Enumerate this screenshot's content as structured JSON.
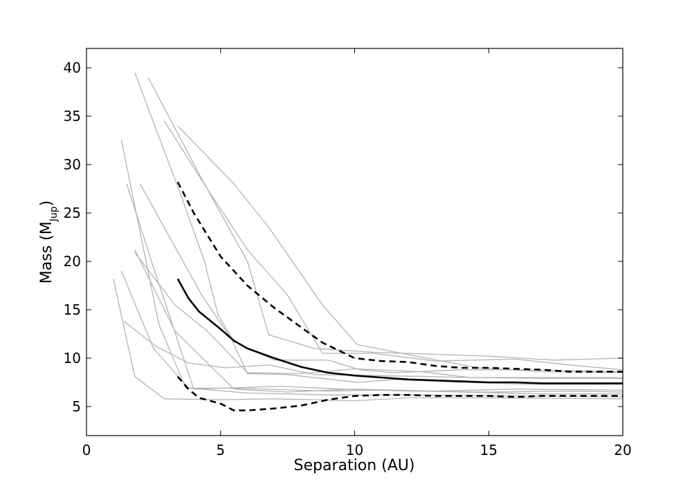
{
  "chart_data": {
    "type": "line",
    "title": "",
    "xlabel": "Separation (AU)",
    "ylabel": "Mass (M",
    "ylabel_subscript": "Jup",
    "ylabel_suffix": ")",
    "xlim": [
      0,
      20
    ],
    "ylim": [
      2,
      42
    ],
    "xticks": [
      0,
      5,
      10,
      15,
      20
    ],
    "yticks": [
      5,
      10,
      15,
      20,
      25,
      30,
      35,
      40
    ],
    "grid": false,
    "legend": "none",
    "colors": {
      "individual": "#b3b3b3",
      "summary": "#000000"
    },
    "individual_series": [
      {
        "points": [
          [
            1.0,
            18.2
          ],
          [
            1.8,
            8.1
          ],
          [
            2.9,
            5.8
          ],
          [
            5,
            5.7
          ],
          [
            7,
            5.8
          ],
          [
            10,
            5.6
          ],
          [
            12,
            5.9
          ],
          [
            15,
            5.9
          ],
          [
            20,
            5.8
          ]
        ]
      },
      {
        "points": [
          [
            1.3,
            19.0
          ],
          [
            2.5,
            11.0
          ],
          [
            3.8,
            6.9
          ],
          [
            6,
            6.4
          ],
          [
            9,
            6.2
          ],
          [
            12,
            6.2
          ],
          [
            16,
            6.1
          ],
          [
            20,
            6.0
          ]
        ]
      },
      {
        "points": [
          [
            1.4,
            13.8
          ],
          [
            2.6,
            11.2
          ],
          [
            3.8,
            9.5
          ],
          [
            5.2,
            9.0
          ],
          [
            6.8,
            9.3
          ],
          [
            8.5,
            8.3
          ],
          [
            10.8,
            8.2
          ],
          [
            14.4,
            8.0
          ],
          [
            17.2,
            7.9
          ],
          [
            20,
            7.9
          ]
        ]
      },
      {
        "points": [
          [
            1.3,
            32.5
          ],
          [
            2.7,
            13.5
          ],
          [
            3.7,
            6.9
          ],
          [
            5.5,
            6.9
          ],
          [
            9,
            6.6
          ],
          [
            11,
            6.7
          ],
          [
            14,
            6.5
          ],
          [
            17,
            6.3
          ],
          [
            20,
            6.3
          ]
        ]
      },
      {
        "points": [
          [
            1.5,
            28.0
          ],
          [
            2.6,
            18.5
          ],
          [
            4.0,
            6.8
          ],
          [
            7.2,
            7.1
          ],
          [
            9.5,
            6.8
          ],
          [
            12,
            6.6
          ],
          [
            15,
            6.5
          ],
          [
            18,
            6.6
          ],
          [
            20,
            6.5
          ]
        ]
      },
      {
        "points": [
          [
            1.8,
            21.2
          ],
          [
            3.3,
            12.8
          ],
          [
            5.5,
            6.8
          ],
          [
            7.5,
            6.5
          ],
          [
            10,
            6.8
          ],
          [
            13,
            6.6
          ],
          [
            16,
            6.8
          ],
          [
            20,
            6.7
          ]
        ]
      },
      {
        "points": [
          [
            1.8,
            20.9
          ],
          [
            3.3,
            15.5
          ],
          [
            4.5,
            12.8
          ],
          [
            6.0,
            8.5
          ],
          [
            8.0,
            8.4
          ],
          [
            10,
            8.9
          ],
          [
            12.5,
            8.6
          ],
          [
            14.3,
            8.0
          ],
          [
            20,
            8.0
          ]
        ]
      },
      {
        "points": [
          [
            2.0,
            28.0
          ],
          [
            4.3,
            16.5
          ],
          [
            5.4,
            12.0
          ],
          [
            6.0,
            8.4
          ],
          [
            7.5,
            8.3
          ],
          [
            10.1,
            7.5
          ],
          [
            11.5,
            7.8
          ],
          [
            14,
            7.5
          ],
          [
            16.5,
            7.3
          ],
          [
            20,
            7.3
          ]
        ]
      },
      {
        "points": [
          [
            1.8,
            39.5
          ],
          [
            3.5,
            27.0
          ],
          [
            4.4,
            20.0
          ],
          [
            4.9,
            14.5
          ],
          [
            5.5,
            11.7
          ],
          [
            7.0,
            9.8
          ],
          [
            9.0,
            9.8
          ],
          [
            10.2,
            8.8
          ],
          [
            11.5,
            8.5
          ],
          [
            14,
            8.8
          ],
          [
            16.5,
            8.8
          ],
          [
            20,
            8.6
          ]
        ]
      },
      {
        "points": [
          [
            2.3,
            39.0
          ],
          [
            4.3,
            28.5
          ],
          [
            6.0,
            20.0
          ],
          [
            6.8,
            12.4
          ],
          [
            8.5,
            11.0
          ],
          [
            10.8,
            10.6
          ],
          [
            13,
            10.4
          ],
          [
            15,
            10.2
          ],
          [
            17.4,
            9.8
          ],
          [
            20,
            10.0
          ]
        ]
      },
      {
        "points": [
          [
            2.9,
            34.5
          ],
          [
            4.5,
            27.5
          ],
          [
            6.0,
            21.2
          ],
          [
            7.5,
            16.5
          ],
          [
            8.8,
            10.5
          ],
          [
            10.7,
            10.5
          ],
          [
            13,
            9.7
          ],
          [
            16,
            9.9
          ],
          [
            18,
            9.3
          ],
          [
            20,
            8.8
          ]
        ]
      },
      {
        "points": [
          [
            3.4,
            34.0
          ],
          [
            5.5,
            28.0
          ],
          [
            6.8,
            23.5
          ],
          [
            8.8,
            15.5
          ],
          [
            10.1,
            11.4
          ],
          [
            12.5,
            10.1
          ],
          [
            14.6,
            9.0
          ],
          [
            17,
            8.6
          ],
          [
            20,
            8.5
          ]
        ]
      }
    ],
    "summary_series": [
      {
        "style": "solid",
        "points": [
          [
            3.4,
            18.2
          ],
          [
            3.8,
            16.2
          ],
          [
            4.2,
            14.8
          ],
          [
            5.0,
            13.0
          ],
          [
            5.5,
            11.8
          ],
          [
            6.0,
            11.0
          ],
          [
            7.0,
            10.0
          ],
          [
            8.0,
            9.1
          ],
          [
            9.0,
            8.5
          ],
          [
            10,
            8.2
          ],
          [
            11,
            8.0
          ],
          [
            12,
            7.8
          ],
          [
            13,
            7.7
          ],
          [
            14,
            7.6
          ],
          [
            15,
            7.5
          ],
          [
            16,
            7.5
          ],
          [
            17,
            7.4
          ],
          [
            18,
            7.4
          ],
          [
            19,
            7.4
          ],
          [
            20,
            7.4
          ]
        ]
      },
      {
        "style": "dashed",
        "points": [
          [
            3.4,
            28.2
          ],
          [
            4.0,
            25.0
          ],
          [
            5.0,
            20.5
          ],
          [
            6.0,
            17.5
          ],
          [
            7.0,
            15.2
          ],
          [
            8.0,
            13.2
          ],
          [
            8.8,
            11.6
          ],
          [
            10,
            10.0
          ],
          [
            11,
            9.7
          ],
          [
            12,
            9.6
          ],
          [
            13,
            9.2
          ],
          [
            14,
            9.0
          ],
          [
            15,
            9.0
          ],
          [
            16,
            8.9
          ],
          [
            17,
            8.8
          ],
          [
            18,
            8.6
          ],
          [
            20,
            8.6
          ]
        ]
      },
      {
        "style": "dashed",
        "points": [
          [
            3.4,
            8.1
          ],
          [
            3.8,
            6.8
          ],
          [
            4.2,
            5.9
          ],
          [
            5.0,
            5.3
          ],
          [
            5.5,
            4.6
          ],
          [
            6.0,
            4.6
          ],
          [
            7.0,
            4.8
          ],
          [
            8.0,
            5.1
          ],
          [
            9.0,
            5.7
          ],
          [
            10,
            6.1
          ],
          [
            11,
            6.2
          ],
          [
            12,
            6.2
          ],
          [
            13,
            6.1
          ],
          [
            14,
            6.1
          ],
          [
            15,
            6.1
          ],
          [
            16,
            6.0
          ],
          [
            17,
            6.1
          ],
          [
            18,
            6.1
          ],
          [
            20,
            6.1
          ]
        ]
      }
    ]
  }
}
